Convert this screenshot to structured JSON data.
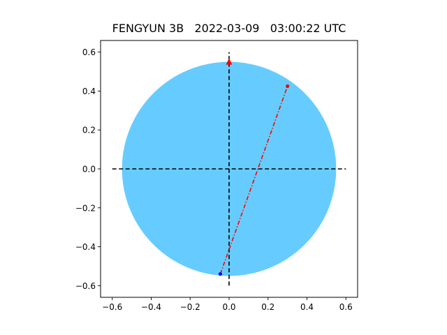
{
  "chart_data": {
    "type": "scatter",
    "title": "FENGYUN 3B   2022-03-09   03:00:22 UTC",
    "xlabel": "",
    "ylabel": "",
    "xlim": [
      -0.66,
      0.66
    ],
    "ylim": [
      -0.66,
      0.66
    ],
    "grid": false,
    "x_ticks": [
      -0.6,
      -0.4,
      -0.2,
      0.0,
      0.2,
      0.4,
      0.6
    ],
    "x_tick_labels": [
      "−0.6",
      "−0.4",
      "−0.2",
      "0.0",
      "0.2",
      "0.4",
      "0.6"
    ],
    "y_ticks": [
      -0.6,
      -0.4,
      -0.2,
      0.0,
      0.2,
      0.4,
      0.6
    ],
    "y_tick_labels": [
      "−0.6",
      "−0.4",
      "−0.2",
      "0.0",
      "0.2",
      "0.4",
      "0.6"
    ],
    "disk": {
      "center": [
        0,
        0
      ],
      "radius": 0.55,
      "color": "#66ccff"
    },
    "crosshair": {
      "extent": 0.6,
      "color": "#000000",
      "style": "dashed"
    },
    "north_marker": {
      "x": 0.0,
      "y": 0.55,
      "marker": "triangle",
      "color": "#ff0000"
    },
    "track": {
      "color": "#ff0000",
      "style": "dash-dot",
      "start": {
        "x": -0.045,
        "y": -0.54,
        "color": "#0000ff"
      },
      "end": {
        "x": 0.3,
        "y": 0.425,
        "color": "#ff0000"
      }
    }
  }
}
